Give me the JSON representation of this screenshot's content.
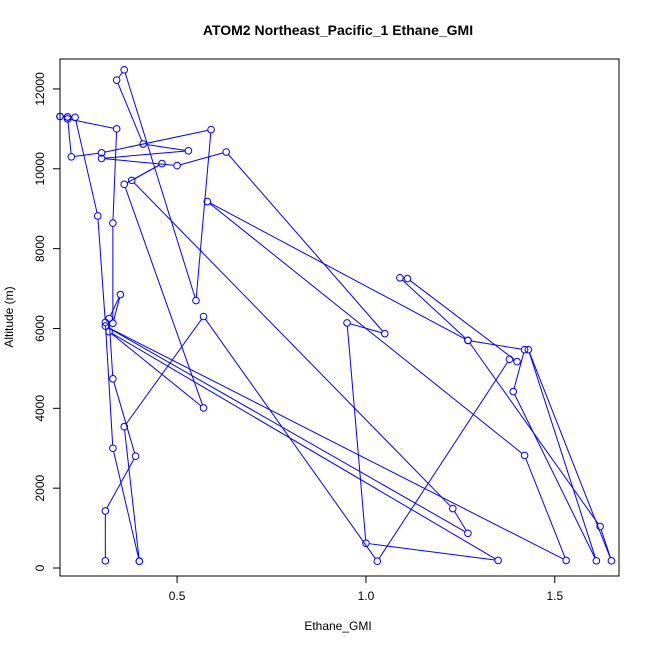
{
  "chart_data": {
    "type": "line",
    "title": "ATOM2 Northeast_Pacific_1 Ethane_GMI",
    "xlabel": "Ethane_GMI",
    "ylabel": "Altitude (m)",
    "xlim": [
      0.19,
      1.67
    ],
    "ylim": [
      -200,
      12750
    ],
    "x_ticks": [
      0.5,
      1.0,
      1.5
    ],
    "x_tick_labels": [
      "0.5",
      "1.0",
      "1.5"
    ],
    "y_ticks": [
      0,
      2000,
      4000,
      6000,
      8000,
      10000,
      12000
    ],
    "y_tick_labels": [
      "0",
      "2000",
      "4000",
      "6000",
      "8000",
      "10000",
      "12000"
    ],
    "grid": false,
    "legend": "none",
    "colors": {
      "series": "#0000ff",
      "axis": "#000000"
    },
    "markers": "open-circle",
    "series": [
      {
        "x": [
          0.31,
          0.31,
          0.39,
          0.33,
          0.32,
          0.35,
          0.33,
          0.33,
          0.34,
          0.21,
          0.21,
          0.22,
          0.3,
          0.59,
          0.55,
          0.36,
          0.34,
          0.41,
          0.53,
          0.3,
          0.5,
          0.63,
          1.05,
          0.95,
          1.0,
          1.35,
          0.32,
          0.57,
          0.36,
          0.46,
          0.38,
          1.23,
          1.27,
          0.31,
          1.53,
          1.42,
          0.58,
          1.27,
          1.62,
          1.65,
          1.43,
          1.61,
          1.39,
          1.42,
          1.27,
          1.09,
          1.11,
          1.4,
          1.38,
          1.03,
          0.57,
          0.36,
          0.4,
          0.4,
          0.33,
          0.31,
          0.29,
          0.23,
          0.21,
          0.19,
          0.19
        ]
      },
      {
        "y": [
          180,
          1430,
          2800,
          4740,
          6250,
          6850,
          6130,
          8640,
          11000,
          11250,
          11300,
          10300,
          10400,
          10980,
          6700,
          12480,
          12220,
          10620,
          10450,
          10260,
          10080,
          10420,
          5870,
          6140,
          620,
          190,
          5920,
          4010,
          9610,
          10130,
          9710,
          1490,
          870,
          6060,
          190,
          2820,
          9180,
          5700,
          1040,
          180,
          5470,
          180,
          4420,
          5470,
          5700,
          7270,
          7250,
          5170,
          5230,
          170,
          6300,
          3540,
          170,
          170,
          3000,
          6150,
          8820,
          11290,
          11300,
          11310,
          11310
        ]
      }
    ]
  }
}
